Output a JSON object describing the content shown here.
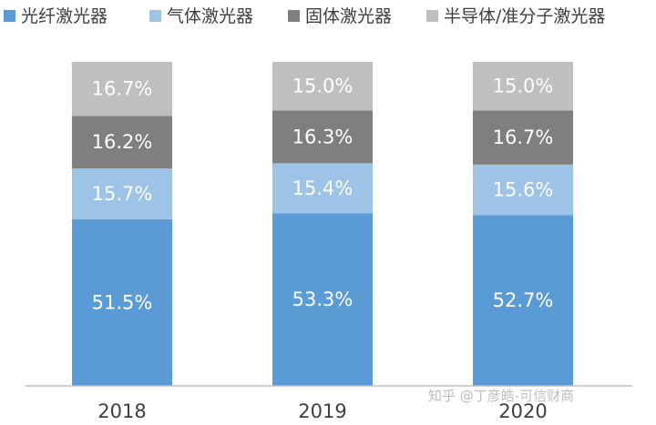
{
  "chart_data": {
    "type": "bar",
    "stacked": true,
    "categories": [
      "2018",
      "2019",
      "2020"
    ],
    "series": [
      {
        "name": "光纤激光器",
        "color": "#5b9bd5",
        "values": [
          51.5,
          53.3,
          52.7
        ],
        "labels": [
          "51.5%",
          "53.3%",
          "52.7%"
        ]
      },
      {
        "name": "气体激光器",
        "color": "#9dc3e6",
        "values": [
          15.7,
          15.4,
          15.6
        ],
        "labels": [
          "15.7%",
          "15.4%",
          "15.6%"
        ]
      },
      {
        "name": "固体激光器",
        "color": "#7f7f7f",
        "values": [
          16.2,
          16.3,
          16.7
        ],
        "labels": [
          "16.2%",
          "16.3%",
          "16.7%"
        ]
      },
      {
        "name": "半导体/准分子激光器",
        "color": "#bfbfbf",
        "values": [
          16.7,
          15.0,
          15.0
        ],
        "labels": [
          "16.7%",
          "15.0%",
          "15.0%"
        ]
      }
    ],
    "ylim": [
      0,
      100
    ],
    "legend_position": "top",
    "grid": false
  },
  "watermark": "知乎 @丁彦皓-可信财商"
}
